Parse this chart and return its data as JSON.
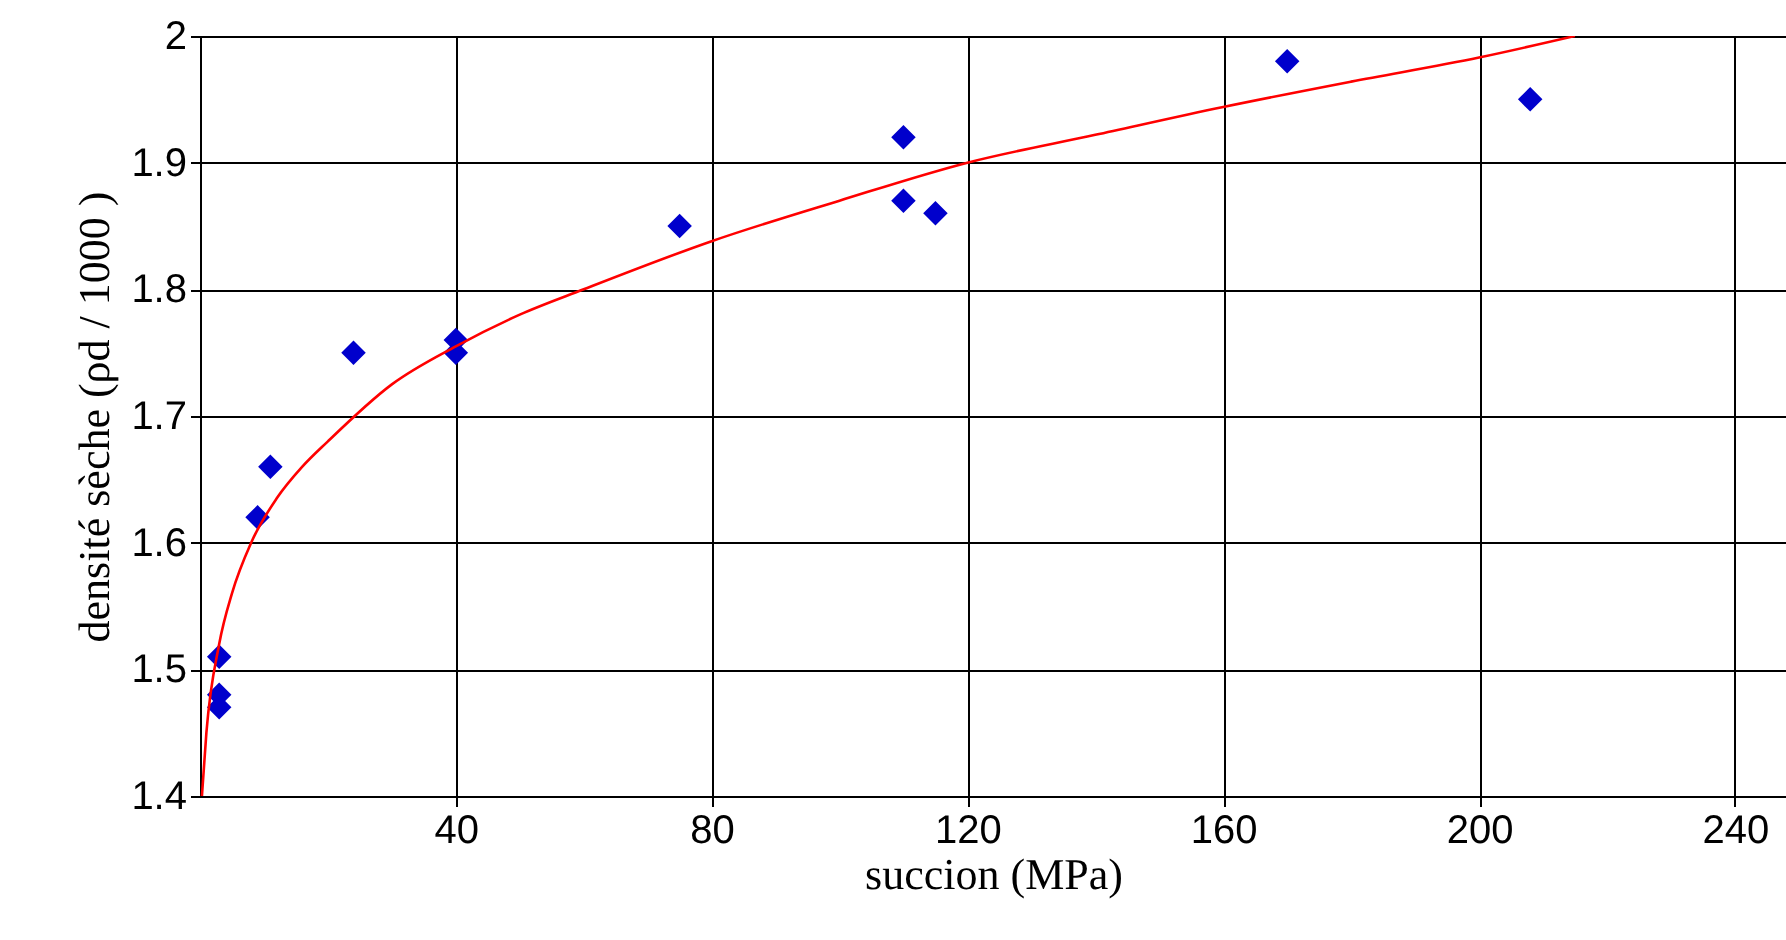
{
  "chart_data": {
    "type": "scatter",
    "xlabel": "succion  (MPa)",
    "ylabel": "densité sèche (ρd / 1000 )",
    "xlim": [
      0,
      248
    ],
    "xticks": [
      40,
      80,
      120,
      160,
      200,
      240
    ],
    "ylim": [
      1.4,
      2
    ],
    "yticks": [
      1.4,
      1.5,
      1.6,
      1.7,
      1.8,
      1.9,
      2
    ],
    "grid": true,
    "series": [
      {
        "color": "#0000cc",
        "marker": "diamond",
        "x": [
          3,
          3,
          3,
          9,
          11,
          24,
          40,
          40,
          75,
          110,
          110,
          115,
          170,
          208
        ],
        "values": [
          1.51,
          1.48,
          1.47,
          1.62,
          1.66,
          1.75,
          1.76,
          1.75,
          1.85,
          1.92,
          1.87,
          1.86,
          1.98,
          1.95
        ]
      },
      {
        "type": "line",
        "color": "#ff0000",
        "marker": "none",
        "line_style": "solid",
        "x": [
          0.3,
          1,
          3,
          5,
          8,
          12,
          16,
          20,
          30,
          40,
          50,
          60,
          80,
          100,
          120,
          140,
          160,
          180,
          200,
          215
        ],
        "values": [
          1.4,
          1.45,
          1.52,
          1.56,
          1.6,
          1.635,
          1.66,
          1.68,
          1.725,
          1.755,
          1.78,
          1.8,
          1.838,
          1.87,
          1.9,
          1.922,
          1.944,
          1.964,
          1.983,
          2.0
        ]
      }
    ]
  }
}
